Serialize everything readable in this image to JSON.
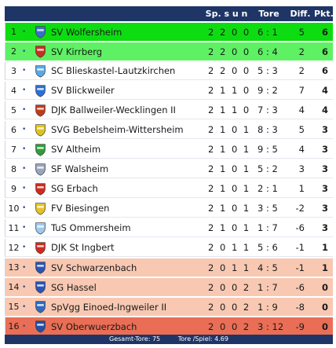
{
  "header": {
    "games": "Sp. s u n",
    "goals": "Tore",
    "diff": "Diff.",
    "points": "Pkt."
  },
  "colors": {
    "header_bg": "#1f3566",
    "promotion": "#0ddc11",
    "promotion_playoff": "#5ef163",
    "relegation_zone": "#f8c8b2",
    "relegated": "#e96e55"
  },
  "standings": [
    {
      "rank": "1",
      "arrow": "•",
      "crest": "wolfersheim-crest",
      "crest_color": "#3b6fd1",
      "club": "SV Wolfersheim",
      "games": "2 2 0 0",
      "goals": "6 : 1",
      "diff": "5",
      "points": "6"
    },
    {
      "rank": "2",
      "arrow": "•",
      "crest": "kirrberg-crest",
      "crest_color": "#d12a1f",
      "club": "SV Kirrberg",
      "games": "2 2 0 0",
      "goals": "6 : 4",
      "diff": "2",
      "points": "6"
    },
    {
      "rank": "3",
      "arrow": "•",
      "crest": "blieskastel-lautzkirchen-crest",
      "crest_color": "#5aa7e8",
      "club": "SC Blieskastel-Lautzkirchen",
      "games": "2 2 0 0",
      "goals": "5 : 3",
      "diff": "2",
      "points": "6"
    },
    {
      "rank": "4",
      "arrow": "•",
      "crest": "blickweiler-crest",
      "crest_color": "#2c6fd6",
      "club": "SV Blickweiler",
      "games": "2 1 1 0",
      "goals": "9 : 2",
      "diff": "7",
      "points": "4"
    },
    {
      "rank": "5",
      "arrow": "•",
      "crest": "ballweiler-wecklingen-crest",
      "crest_color": "#c23a1c",
      "club": "DJK Ballweiler-Wecklingen II",
      "games": "2 1 1 0",
      "goals": "7 : 3",
      "diff": "4",
      "points": "4"
    },
    {
      "rank": "6",
      "arrow": "•",
      "crest": "bebelsheim-wittersheim-crest",
      "crest_color": "#e1c21a",
      "club": "SVG Bebelsheim-Wittersheim",
      "games": "2 1 0 1",
      "goals": "8 : 3",
      "diff": "5",
      "points": "3"
    },
    {
      "rank": "7",
      "arrow": "•",
      "crest": "altheim-crest",
      "crest_color": "#2e9e3a",
      "club": "SV Altheim",
      "games": "2 1 0 1",
      "goals": "9 : 5",
      "diff": "4",
      "points": "3"
    },
    {
      "rank": "8",
      "arrow": "•",
      "crest": "walsheim-crest",
      "crest_color": "#9aa4bd",
      "club": "SF Walsheim",
      "games": "2 1 0 1",
      "goals": "5 : 2",
      "diff": "3",
      "points": "3"
    },
    {
      "rank": "9",
      "arrow": "•",
      "crest": "erbach-crest",
      "crest_color": "#d12a1f",
      "club": "SG Erbach",
      "games": "2 1 0 1",
      "goals": "2 : 1",
      "diff": "1",
      "points": "3"
    },
    {
      "rank": "10",
      "arrow": "•",
      "crest": "biesingen-crest",
      "crest_color": "#e6c228",
      "club": "FV Biesingen",
      "games": "2 1 0 1",
      "goals": "3 : 5",
      "diff": "-2",
      "points": "3"
    },
    {
      "rank": "11",
      "arrow": "•",
      "crest": "ommersheim-crest",
      "crest_color": "#9ec9ee",
      "club": "TuS Ommersheim",
      "games": "2 1 0 1",
      "goals": "1 : 7",
      "diff": "-6",
      "points": "3"
    },
    {
      "rank": "12",
      "arrow": "•",
      "crest": "st-ingbert-crest",
      "crest_color": "#d12a1f",
      "club": "DJK St Ingbert",
      "games": "2 0 1 1",
      "goals": "5 : 6",
      "diff": "-1",
      "points": "1"
    },
    {
      "rank": "13",
      "arrow": "•",
      "crest": "schwarzenbach-crest",
      "crest_color": "#2a55b8",
      "club": "SV Schwarzenbach",
      "games": "2 0 1 1",
      "goals": "4 : 5",
      "diff": "-1",
      "points": "1"
    },
    {
      "rank": "14",
      "arrow": "•",
      "crest": "hassel-crest",
      "crest_color": "#2a55b8",
      "club": "SG Hassel",
      "games": "2 0 0 2",
      "goals": "1 : 7",
      "diff": "-6",
      "points": "0"
    },
    {
      "rank": "15",
      "arrow": "•",
      "crest": "einoed-ingweiler-crest",
      "crest_color": "#2d6bc0",
      "club": "SpVgg Einoed-Ingweiler II",
      "games": "2 0 0 2",
      "goals": "1 : 9",
      "diff": "-8",
      "points": "0"
    },
    {
      "rank": "16",
      "arrow": "•",
      "crest": "oberwuerzbach-crest",
      "crest_color": "#1f4fa8",
      "club": "SV Oberwuerzbach",
      "games": "2 0 0 2",
      "goals": "3 : 12",
      "diff": "-9",
      "points": "0"
    }
  ],
  "footer": {
    "total_goals": "Gesamt-Tore: 75",
    "goals_per_game": "Tore /Spiel: 4.69"
  }
}
